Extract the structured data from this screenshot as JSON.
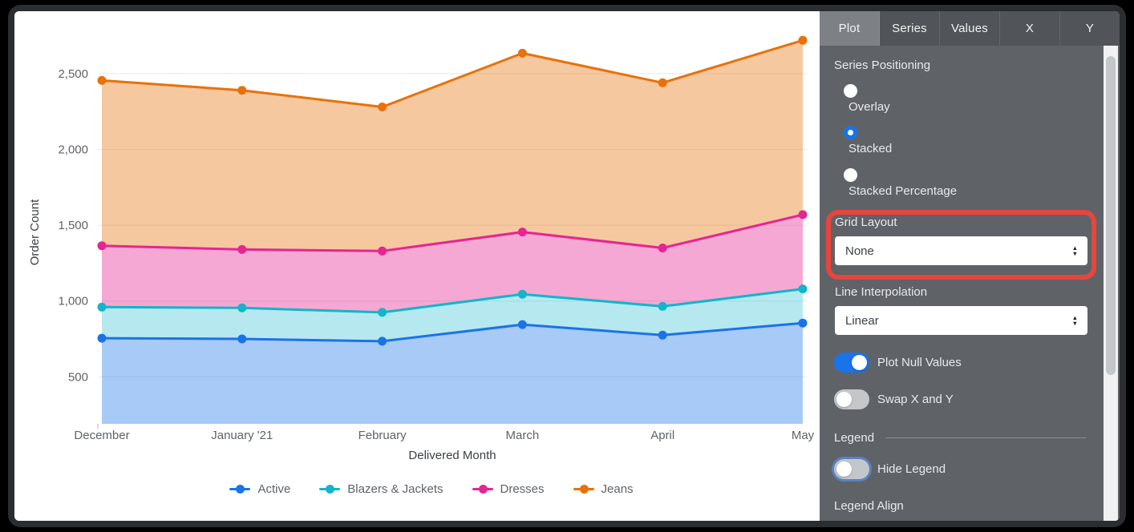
{
  "chart_data": {
    "type": "area",
    "stacking": "stacked",
    "title": "",
    "xlabel": "Delivered Month",
    "ylabel": "Order Count",
    "categories": [
      "December",
      "January '21",
      "February",
      "March",
      "April",
      "May"
    ],
    "series": [
      {
        "name": "Active",
        "color": "#1a73e8",
        "values": [
          755,
          750,
          735,
          845,
          775,
          855
        ]
      },
      {
        "name": "Blazers & Jackets",
        "color": "#12b5cb",
        "values": [
          205,
          205,
          190,
          200,
          190,
          225
        ]
      },
      {
        "name": "Dresses",
        "color": "#e52592",
        "values": [
          405,
          385,
          405,
          410,
          385,
          490
        ]
      },
      {
        "name": "Jeans",
        "color": "#e8710a",
        "values": [
          1090,
          1050,
          950,
          1180,
          1090,
          1150
        ]
      }
    ],
    "stacked_totals": [
      2455,
      2390,
      2280,
      2635,
      2440,
      2720
    ],
    "yticks": [
      500,
      1000,
      1500,
      2000,
      2500
    ],
    "ylim": [
      190,
      2880
    ],
    "grid": "horizontal",
    "legend_position": "bottom"
  },
  "panel": {
    "tabs": [
      {
        "label": "Plot",
        "selected": true
      },
      {
        "label": "Series",
        "selected": false
      },
      {
        "label": "Values",
        "selected": false
      },
      {
        "label": "X",
        "selected": false
      },
      {
        "label": "Y",
        "selected": false
      }
    ],
    "series_positioning": {
      "label": "Series Positioning",
      "options": [
        {
          "label": "Overlay",
          "selected": false
        },
        {
          "label": "Stacked",
          "selected": true
        },
        {
          "label": "Stacked Percentage",
          "selected": false
        }
      ]
    },
    "grid_layout": {
      "label": "Grid Layout",
      "value": "None",
      "highlighted": true
    },
    "line_interpolation": {
      "label": "Line Interpolation",
      "value": "Linear"
    },
    "toggles": [
      {
        "label": "Plot Null Values",
        "on": true,
        "focused": false
      },
      {
        "label": "Swap X and Y",
        "on": false,
        "focused": false
      }
    ],
    "legend_section": {
      "label": "Legend",
      "hide_legend": {
        "label": "Hide Legend",
        "on": false,
        "focused": true
      },
      "legend_align_label": "Legend Align"
    },
    "highlight_color": "#e8453c",
    "accent_color": "#1a73e8",
    "updown_icon": {
      "up": "▲",
      "down": "▼"
    }
  }
}
